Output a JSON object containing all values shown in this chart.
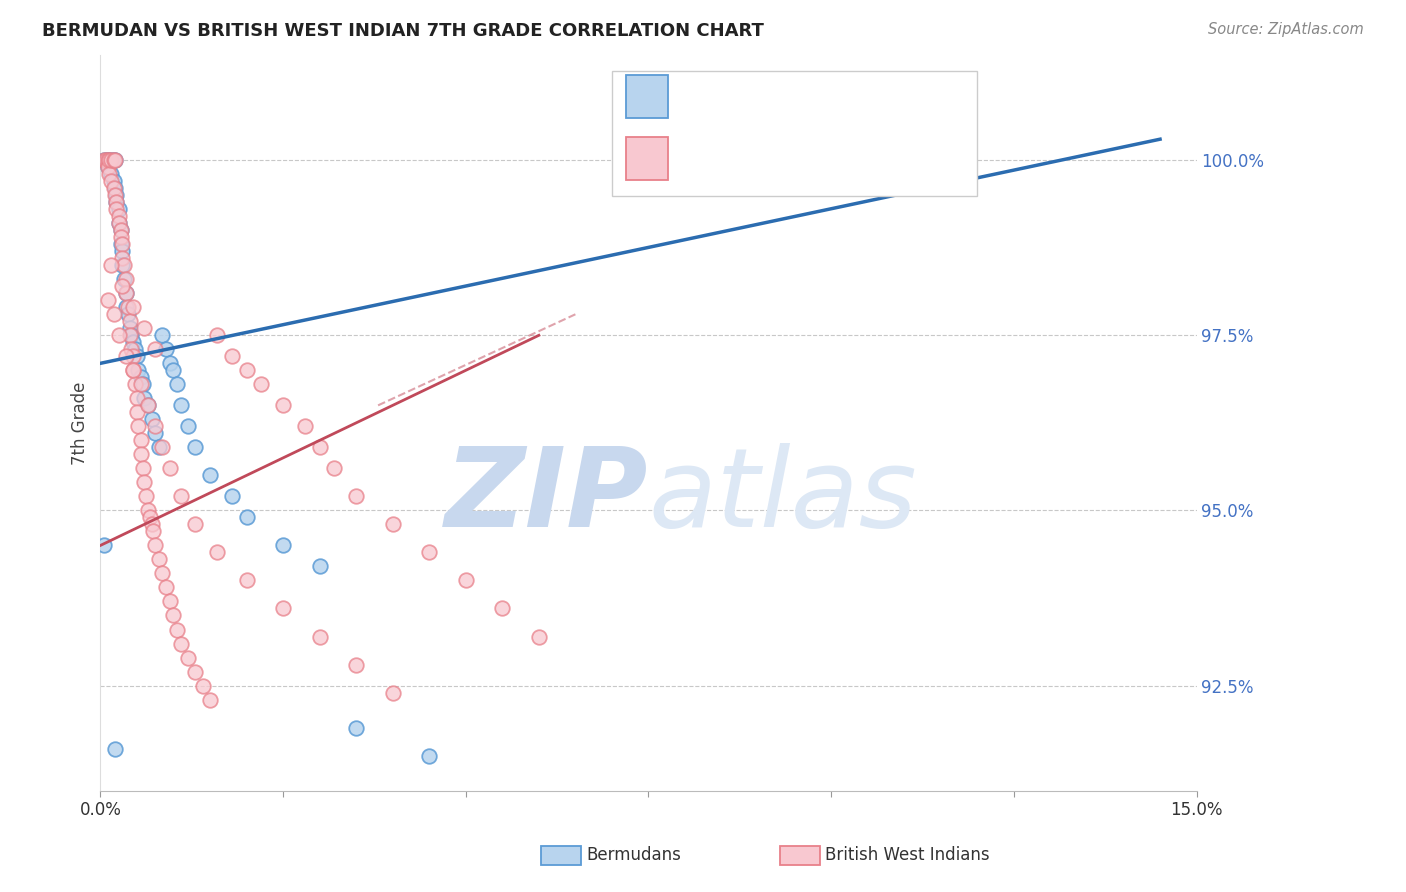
{
  "title": "BERMUDAN VS BRITISH WEST INDIAN 7TH GRADE CORRELATION CHART",
  "source": "Source: ZipAtlas.com",
  "ylabel": "7th Grade",
  "xlim": [
    0.0,
    15.0
  ],
  "ylim": [
    91.0,
    101.5
  ],
  "yticks": [
    92.5,
    95.0,
    97.5,
    100.0
  ],
  "ytick_labels": [
    "92.5%",
    "95.0%",
    "97.5%",
    "100.0%"
  ],
  "xticks": [
    0.0,
    2.5,
    5.0,
    7.5,
    10.0,
    12.5,
    15.0
  ],
  "xtick_show": [
    "0.0%",
    "15.0%"
  ],
  "blue_scatter_x": [
    0.05,
    0.08,
    0.1,
    0.1,
    0.12,
    0.15,
    0.15,
    0.18,
    0.18,
    0.2,
    0.2,
    0.22,
    0.22,
    0.25,
    0.25,
    0.28,
    0.28,
    0.3,
    0.3,
    0.32,
    0.35,
    0.35,
    0.38,
    0.4,
    0.42,
    0.45,
    0.48,
    0.5,
    0.52,
    0.55,
    0.58,
    0.6,
    0.65,
    0.7,
    0.75,
    0.8,
    0.85,
    0.9,
    0.95,
    1.0,
    1.05,
    1.1,
    1.2,
    1.3,
    1.5,
    1.8,
    2.0,
    2.5,
    3.0,
    3.5,
    4.5,
    0.05,
    0.2
  ],
  "blue_scatter_y": [
    100.0,
    100.0,
    100.0,
    99.9,
    100.0,
    100.0,
    99.8,
    100.0,
    99.7,
    100.0,
    99.6,
    99.5,
    99.4,
    99.3,
    99.1,
    99.0,
    98.8,
    98.7,
    98.5,
    98.3,
    98.1,
    97.9,
    97.8,
    97.6,
    97.5,
    97.4,
    97.3,
    97.2,
    97.0,
    96.9,
    96.8,
    96.6,
    96.5,
    96.3,
    96.1,
    95.9,
    97.5,
    97.3,
    97.1,
    97.0,
    96.8,
    96.5,
    96.2,
    95.9,
    95.5,
    95.2,
    94.9,
    94.5,
    94.2,
    91.9,
    91.5,
    94.5,
    91.6
  ],
  "pink_scatter_x": [
    0.05,
    0.08,
    0.1,
    0.1,
    0.12,
    0.12,
    0.15,
    0.15,
    0.18,
    0.18,
    0.2,
    0.2,
    0.22,
    0.22,
    0.25,
    0.25,
    0.28,
    0.28,
    0.3,
    0.3,
    0.32,
    0.35,
    0.35,
    0.38,
    0.4,
    0.4,
    0.42,
    0.45,
    0.45,
    0.48,
    0.5,
    0.5,
    0.52,
    0.55,
    0.55,
    0.58,
    0.6,
    0.62,
    0.65,
    0.68,
    0.7,
    0.72,
    0.75,
    0.8,
    0.85,
    0.9,
    0.95,
    1.0,
    1.05,
    1.1,
    1.2,
    1.3,
    1.4,
    1.5,
    1.6,
    1.8,
    2.0,
    2.2,
    2.5,
    2.8,
    3.0,
    3.2,
    3.5,
    4.0,
    4.5,
    5.0,
    5.5,
    6.0,
    0.1,
    0.18,
    0.25,
    0.35,
    0.45,
    0.55,
    0.65,
    0.75,
    0.85,
    0.95,
    1.1,
    1.3,
    1.6,
    2.0,
    2.5,
    3.0,
    3.5,
    4.0,
    0.15,
    0.3,
    0.45,
    0.6,
    0.75
  ],
  "pink_scatter_y": [
    100.0,
    100.0,
    100.0,
    99.9,
    100.0,
    99.8,
    100.0,
    99.7,
    100.0,
    99.6,
    100.0,
    99.5,
    99.4,
    99.3,
    99.2,
    99.1,
    99.0,
    98.9,
    98.8,
    98.6,
    98.5,
    98.3,
    98.1,
    97.9,
    97.7,
    97.5,
    97.3,
    97.2,
    97.0,
    96.8,
    96.6,
    96.4,
    96.2,
    96.0,
    95.8,
    95.6,
    95.4,
    95.2,
    95.0,
    94.9,
    94.8,
    94.7,
    94.5,
    94.3,
    94.1,
    93.9,
    93.7,
    93.5,
    93.3,
    93.1,
    92.9,
    92.7,
    92.5,
    92.3,
    97.5,
    97.2,
    97.0,
    96.8,
    96.5,
    96.2,
    95.9,
    95.6,
    95.2,
    94.8,
    94.4,
    94.0,
    93.6,
    93.2,
    98.0,
    97.8,
    97.5,
    97.2,
    97.0,
    96.8,
    96.5,
    96.2,
    95.9,
    95.6,
    95.2,
    94.8,
    94.4,
    94.0,
    93.6,
    93.2,
    92.8,
    92.4,
    98.5,
    98.2,
    97.9,
    97.6,
    97.3
  ],
  "blue_line": {
    "x0": 0.0,
    "y0": 97.1,
    "x1": 14.5,
    "y1": 100.3
  },
  "pink_line": {
    "x0": 0.0,
    "y0": 94.5,
    "x1": 6.0,
    "y1": 97.5
  },
  "pink_line_dashed": {
    "x0": 3.8,
    "y0": 96.5,
    "x1": 6.5,
    "y1": 97.8
  },
  "blue_color_face": "#b8d4ee",
  "blue_color_edge": "#5b9bd5",
  "pink_color_face": "#f8c8d0",
  "pink_color_edge": "#e8808a",
  "blue_line_color": "#2b6cb0",
  "pink_line_color": "#c0495a",
  "axis_tick_color": "#4472C4",
  "grid_color": "#c8c8c8",
  "title_color": "#222222",
  "source_color": "#888888",
  "watermark_zip_color": "#c8d8ee",
  "watermark_atlas_color": "#dde8f5",
  "background": "#ffffff"
}
